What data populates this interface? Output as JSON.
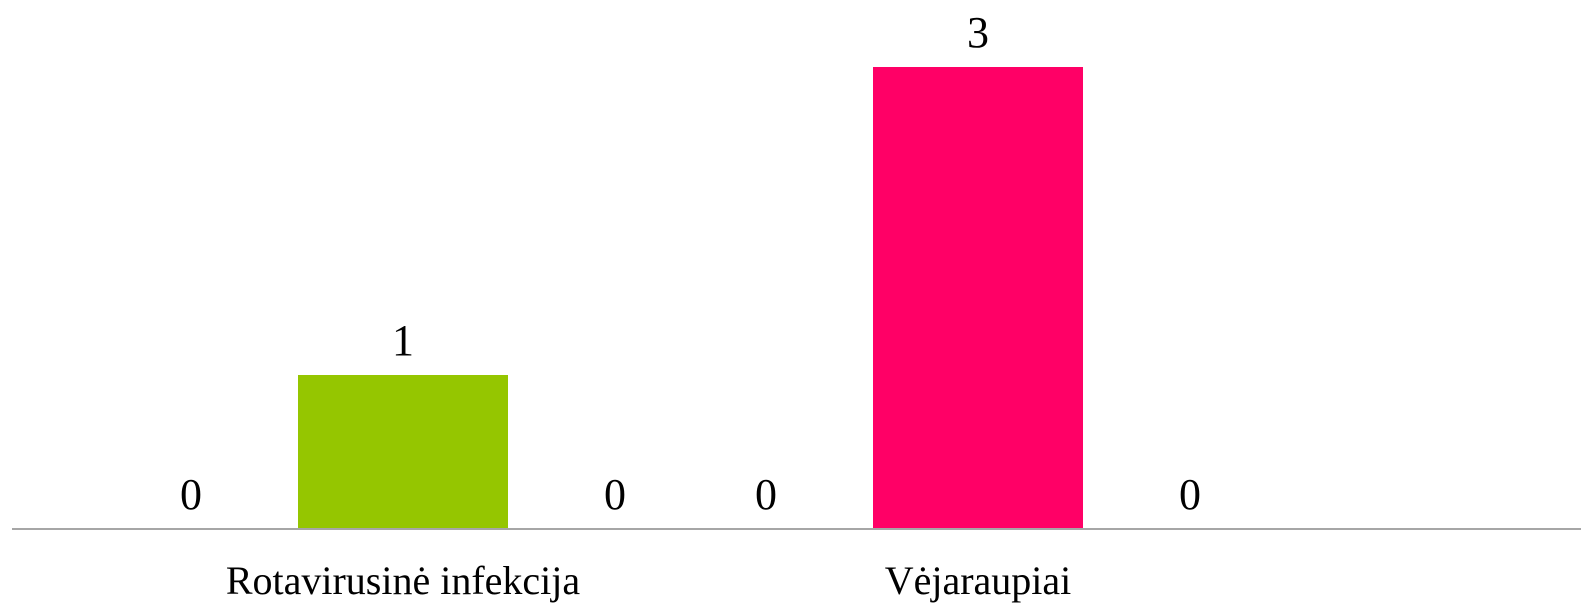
{
  "chart_data": {
    "type": "bar",
    "categories": [
      "Rotavirusinė infekcija",
      "Vėjaraupiai"
    ],
    "series": [
      {
        "values": [
          0,
          0
        ],
        "color": "#5B9BD5"
      },
      {
        "values": [
          1,
          3
        ],
        "color_by_category": [
          "#95C600",
          "#FF0066"
        ]
      },
      {
        "values": [
          0,
          0
        ],
        "color": "#A5A5A5"
      }
    ],
    "value_labels": true,
    "ylim": [
      0,
      3
    ],
    "axis_line_color": "#A6A6A6",
    "grid": false,
    "title": "",
    "xlabel": "",
    "ylabel": ""
  }
}
